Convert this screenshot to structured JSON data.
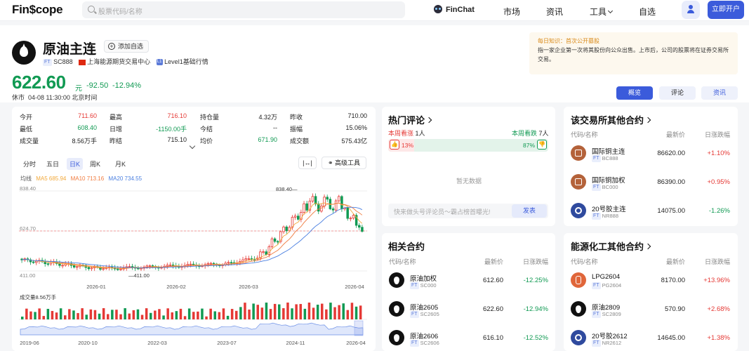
{
  "header": {
    "logo": "Fin$cope",
    "search_placeholder": "股票代码/名称",
    "finchat_label": "FinChat",
    "nav": [
      "市场",
      "资讯",
      "工具",
      "自选"
    ],
    "open_account": "立即开户",
    "colors": {
      "accent": "#3b5bdb"
    }
  },
  "quote": {
    "name": "原油主连",
    "add_watchlist": "添加自选",
    "ft_tag": "FT",
    "code": "SC888",
    "exchange": "上海能源期货交易中心",
    "level": "Level1基础行情",
    "level_badge": "L1",
    "price": "622.60",
    "unit": "元",
    "change": "-92.50",
    "change_pct": "-12.94%",
    "status": "休市  04-08 11:30:00 北京时间"
  },
  "tip": {
    "title": "每日知识：首次公开募股",
    "body": "指一家企业第一次将其股份向公众出售。上市后，公司的股票将在证券交易所交易。"
  },
  "tabs": [
    "概览",
    "评论",
    "资讯"
  ],
  "stats": [
    [
      {
        "label": "今开",
        "value": "711.60",
        "color": "red"
      },
      {
        "label": "最高",
        "value": "716.10",
        "color": "red"
      },
      {
        "label": "持仓量",
        "value": "4.32万",
        "color": "black"
      },
      {
        "label": "昨收",
        "value": "710.00",
        "color": "black"
      }
    ],
    [
      {
        "label": "最低",
        "value": "608.40",
        "color": "green"
      },
      {
        "label": "日增",
        "value": "-1150.00手",
        "color": "green"
      },
      {
        "label": "今结",
        "value": "--",
        "color": "black"
      },
      {
        "label": "振幅",
        "value": "15.06%",
        "color": "black"
      }
    ],
    [
      {
        "label": "成交量",
        "value": "8.56万手",
        "color": "black"
      },
      {
        "label": "昨结",
        "value": "715.10",
        "color": "black"
      },
      {
        "label": "均价",
        "value": "671.90",
        "color": "green"
      },
      {
        "label": "成交额",
        "value": "575.43亿",
        "color": "black"
      }
    ]
  ],
  "periods": [
    "分时",
    "五日",
    "日K",
    "周K",
    "月K"
  ],
  "tools": {
    "advanced": "高级工具"
  },
  "ma": {
    "label": "均线",
    "ma5": "MA5 685.94",
    "ma10": "MA10 713.16",
    "ma20": "MA20 734.55"
  },
  "chart_data": {
    "type": "candlestick",
    "y_ticks": [
      "838.40",
      "624.70",
      "411.00"
    ],
    "x_labels": [
      "2026-01",
      "2026-02",
      "2026-03",
      "2026-04"
    ],
    "high_marker": "838.40",
    "low_marker": "411.00",
    "current_line": 624.7,
    "ylim": [
      411,
      838.4
    ],
    "volume_label": "成交量8.56万手",
    "overview_x_labels": [
      "2019-06",
      "2020-10",
      "2022-03",
      "2023-07",
      "2024-11",
      "2026-04"
    ]
  },
  "comments": {
    "title": "热门评论",
    "bull_label": "本周看涨",
    "bull_count": "1人",
    "bear_label": "本周看跌",
    "bear_count": "7人",
    "bull_pct": "13%",
    "bear_pct": "87%",
    "empty": "暂无数据",
    "input_placeholder": "快来做头号评论员～霸占榜首曝光!",
    "send": "发表"
  },
  "related": {
    "title": "相关合约",
    "col_name": "代码/名称",
    "col_price": "最新价",
    "col_change": "日涨跌幅",
    "rows": [
      {
        "name": "原油加权",
        "code": "SC000",
        "price": "612.60",
        "change": "-12.25%",
        "dir": "down"
      },
      {
        "name": "原油2605",
        "code": "SC2605",
        "price": "622.60",
        "change": "-12.94%",
        "dir": "down"
      },
      {
        "name": "原油2606",
        "code": "SC2606",
        "price": "616.10",
        "change": "-12.52%",
        "dir": "down"
      }
    ]
  },
  "exchange_other": {
    "title": "该交易所其他合约",
    "col_name": "代码/名称",
    "col_price": "最新价",
    "col_change": "日涨跌幅",
    "rows": [
      {
        "name": "国际铜主连",
        "code": "BC888",
        "price": "86620.00",
        "change": "+1.10%",
        "dir": "up",
        "icon": "copper"
      },
      {
        "name": "国际铜加权",
        "code": "BC000",
        "price": "86390.00",
        "change": "+0.95%",
        "dir": "up",
        "icon": "copper"
      },
      {
        "name": "20号胶主连",
        "code": "NR888",
        "price": "14075.00",
        "change": "-1.26%",
        "dir": "down",
        "icon": "rubber"
      }
    ]
  },
  "energy_other": {
    "title": "能源化工其他合约",
    "col_name": "代码/名称",
    "col_price": "最新价",
    "col_change": "日涨跌幅",
    "rows": [
      {
        "name": "LPG2604",
        "code": "PG2604",
        "price": "8170.00",
        "change": "+13.96%",
        "dir": "up",
        "icon": "lpg"
      },
      {
        "name": "原油2809",
        "code": "SC2809",
        "price": "570.90",
        "change": "+2.68%",
        "dir": "up",
        "icon": "oil"
      },
      {
        "name": "20号胶2612",
        "code": "NR2612",
        "price": "14645.00",
        "change": "+1.38%",
        "dir": "up",
        "icon": "rubber"
      }
    ]
  }
}
